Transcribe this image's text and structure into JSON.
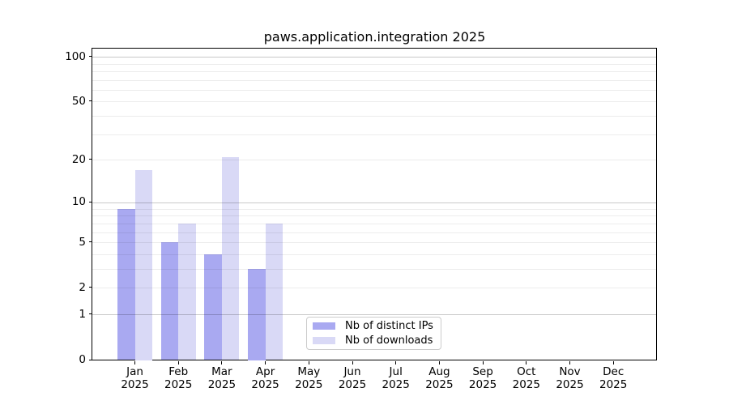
{
  "chart_data": {
    "type": "bar",
    "title": "paws.application.integration 2025",
    "xlabel": "",
    "ylabel": "",
    "y_scale": "log1p",
    "ylim": [
      0,
      113
    ],
    "grid": "horizontal",
    "legend_position": "lower center",
    "categories": [
      "Jan",
      "Feb",
      "Mar",
      "Apr",
      "May",
      "Jun",
      "Jul",
      "Aug",
      "Sep",
      "Oct",
      "Nov",
      "Dec"
    ],
    "x_year_label": "2025",
    "series": [
      {
        "name": "Nb of distinct IPs",
        "color": "#a9a9f1",
        "values": [
          9,
          5,
          4,
          3,
          0,
          0,
          0,
          0,
          0,
          0,
          0,
          0
        ]
      },
      {
        "name": "Nb of downloads",
        "color": "#d9d9f6",
        "values": [
          17,
          7,
          21,
          7,
          0,
          0,
          0,
          0,
          0,
          0,
          0,
          0
        ]
      }
    ],
    "y_ticks": [
      "100",
      "50",
      "20",
      "10",
      "5",
      "2",
      "1",
      "0"
    ],
    "grid_minor_values": [
      2,
      3,
      4,
      5,
      6,
      7,
      8,
      9,
      20,
      30,
      40,
      50,
      60,
      70,
      80,
      90
    ],
    "grid_major_values": [
      1,
      10,
      100
    ]
  },
  "colors": {
    "grid_minor": "rgba(0,0,0,0.075)",
    "grid_major": "rgba(0,0,0,0.21)",
    "axis": "#000000",
    "legend_border": "#cccccc",
    "text": "#000000"
  }
}
